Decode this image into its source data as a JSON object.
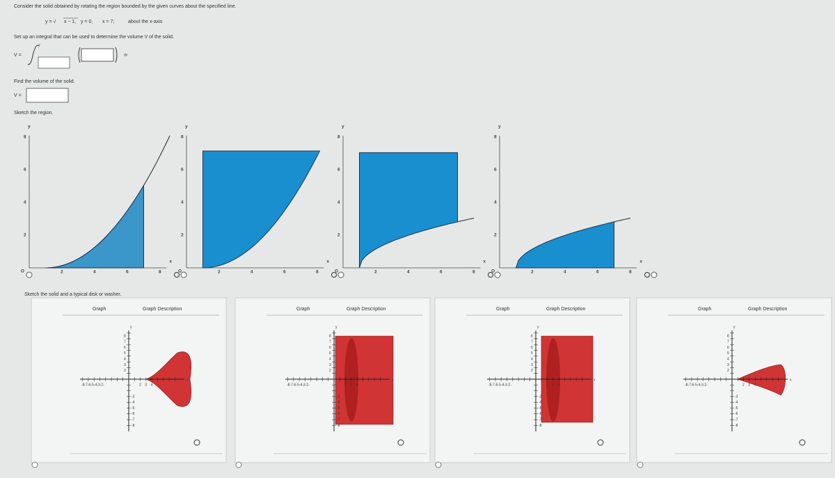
{
  "problem": {
    "intro": "Consider the solid obtained by rotating the region bounded by the given curves about the specified line.",
    "curve_1_lhs": "y = √",
    "curve_1_radicand": "x − 1,",
    "curve_2": "y = 0,",
    "curve_3": "x = 7;",
    "about": "about the x-axis"
  },
  "part1": {
    "prompt": "Set up an integral that can be used to determine the volume V of the solid.",
    "lhs": "V =",
    "upper_limit": "7",
    "differential": "dx"
  },
  "part2": {
    "prompt": "Find the volume of the solid.",
    "lhs": "V ="
  },
  "part3": {
    "prompt": "Sketch the region.",
    "axis_x": "x",
    "axis_y": "y",
    "origin": "O",
    "x_ticks": [
      "2",
      "4",
      "6",
      "8"
    ],
    "y_ticks": [
      "2",
      "4",
      "6",
      "8"
    ]
  },
  "part4": {
    "prompt": "Sketch the solid and a typical disk or washer.",
    "tabs": [
      "Graph",
      "Graph Description"
    ],
    "axis_x": "x",
    "axis_y": "y",
    "y_ticks_pos": [
      "8",
      "7",
      "6",
      "5",
      "4",
      "3",
      "2"
    ],
    "y_ticks_neg": [
      "-3",
      "-4",
      "-5",
      "-6",
      "-7",
      "-8"
    ],
    "x_ticks_neg": "-8-7-6-5-4-3-2-",
    "x_ticks_pos": [
      "2",
      "3",
      "4"
    ]
  }
}
